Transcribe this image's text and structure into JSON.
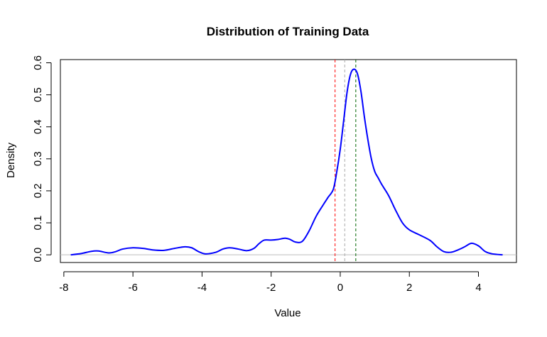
{
  "chart_data": {
    "type": "line",
    "title": "Distribution of Training Data",
    "xlabel": "Value",
    "ylabel": "Density",
    "xlim": [
      -8.1,
      5.1
    ],
    "ylim": [
      -0.024,
      0.61
    ],
    "x_ticks": [
      -8,
      -6,
      -4,
      -2,
      0,
      2,
      4
    ],
    "y_ticks": [
      0.0,
      0.1,
      0.2,
      0.3,
      0.4,
      0.5,
      0.6
    ],
    "x_tick_labels": [
      "-8",
      "-6",
      "-4",
      "-2",
      "0",
      "2",
      "4"
    ],
    "y_tick_labels": [
      "0.0",
      "0.1",
      "0.2",
      "0.3",
      "0.4",
      "0.5",
      "0.6"
    ],
    "grid": false,
    "baseline": {
      "y": 0,
      "color": "#bebebe"
    },
    "series": [
      {
        "color": "#0000ff",
        "x": [
          -7.8,
          -7.5,
          -7.2,
          -7.0,
          -6.7,
          -6.5,
          -6.3,
          -6.0,
          -5.7,
          -5.4,
          -5.1,
          -4.8,
          -4.5,
          -4.3,
          -4.1,
          -3.9,
          -3.6,
          -3.4,
          -3.2,
          -2.95,
          -2.7,
          -2.5,
          -2.35,
          -2.2,
          -2.0,
          -1.8,
          -1.6,
          -1.45,
          -1.3,
          -1.1,
          -0.9,
          -0.7,
          -0.5,
          -0.35,
          -0.2,
          -0.1,
          0.0,
          0.1,
          0.2,
          0.3,
          0.4,
          0.5,
          0.6,
          0.7,
          0.8,
          0.9,
          1.0,
          1.1,
          1.2,
          1.4,
          1.6,
          1.8,
          2.0,
          2.3,
          2.6,
          2.8,
          3.0,
          3.2,
          3.4,
          3.6,
          3.8,
          4.0,
          4.2,
          4.4,
          4.7
        ],
        "y": [
          0.0,
          0.004,
          0.011,
          0.012,
          0.006,
          0.01,
          0.018,
          0.022,
          0.02,
          0.015,
          0.014,
          0.02,
          0.025,
          0.022,
          0.01,
          0.003,
          0.008,
          0.018,
          0.022,
          0.018,
          0.013,
          0.02,
          0.035,
          0.046,
          0.046,
          0.048,
          0.052,
          0.048,
          0.04,
          0.042,
          0.075,
          0.12,
          0.155,
          0.18,
          0.205,
          0.26,
          0.33,
          0.42,
          0.51,
          0.565,
          0.58,
          0.565,
          0.51,
          0.43,
          0.36,
          0.3,
          0.26,
          0.24,
          0.22,
          0.185,
          0.14,
          0.1,
          0.078,
          0.062,
          0.045,
          0.025,
          0.01,
          0.008,
          0.015,
          0.025,
          0.036,
          0.028,
          0.01,
          0.003,
          0.0
        ]
      }
    ],
    "vertical_lines": [
      {
        "x": -0.15,
        "color": "#ff0000",
        "style": "dashed"
      },
      {
        "x": 0.13,
        "color": "#aaaaaa",
        "style": "dashed"
      },
      {
        "x": 0.45,
        "color": "#006400",
        "style": "dashed"
      }
    ]
  }
}
